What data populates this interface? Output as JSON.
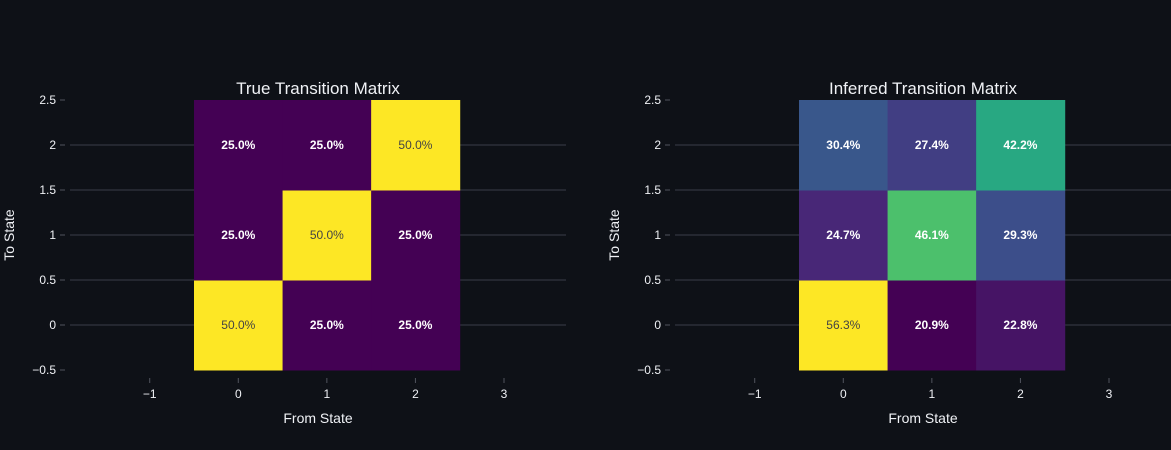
{
  "chart_data": [
    {
      "type": "heatmap",
      "title": "True Transition Matrix",
      "xlabel": "From State",
      "ylabel": "To State",
      "x": [
        0,
        1,
        2
      ],
      "y": [
        0,
        1,
        2
      ],
      "xlim": [
        -1.9,
        3.7
      ],
      "ylim": [
        -0.5,
        2.5
      ],
      "x_ticks": [
        "−1",
        "0",
        "1",
        "2",
        "3"
      ],
      "y_ticks": [
        "−0.5",
        "0",
        "0.5",
        "1",
        "1.5",
        "2",
        "2.5"
      ],
      "grid": true,
      "colorscale": "viridis",
      "z": [
        [
          0.5,
          0.25,
          0.25
        ],
        [
          0.25,
          0.5,
          0.25
        ],
        [
          0.25,
          0.25,
          0.5
        ]
      ],
      "text": [
        [
          "50.0%",
          "25.0%",
          "25.0%"
        ],
        [
          "25.0%",
          "50.0%",
          "25.0%"
        ],
        [
          "25.0%",
          "25.0%",
          "50.0%"
        ]
      ]
    },
    {
      "type": "heatmap",
      "title": "Inferred Transition Matrix",
      "xlabel": "From State",
      "ylabel": "To State",
      "x": [
        0,
        1,
        2
      ],
      "y": [
        0,
        1,
        2
      ],
      "xlim": [
        -1.9,
        3.7
      ],
      "ylim": [
        -0.5,
        2.5
      ],
      "x_ticks": [
        "−1",
        "0",
        "1",
        "2",
        "3"
      ],
      "y_ticks": [
        "−0.5",
        "0",
        "0.5",
        "1",
        "1.5",
        "2",
        "2.5"
      ],
      "grid": true,
      "colorscale": "viridis",
      "z": [
        [
          0.563,
          0.209,
          0.228
        ],
        [
          0.247,
          0.461,
          0.293
        ],
        [
          0.304,
          0.274,
          0.422
        ]
      ],
      "text": [
        [
          "56.3%",
          "20.9%",
          "22.8%"
        ],
        [
          "24.7%",
          "46.1%",
          "29.3%"
        ],
        [
          "30.4%",
          "27.4%",
          "42.2%"
        ]
      ]
    }
  ],
  "colors": {
    "background": "#0e1117",
    "text": "#f0f2f6",
    "grid": "#2b2f38"
  }
}
